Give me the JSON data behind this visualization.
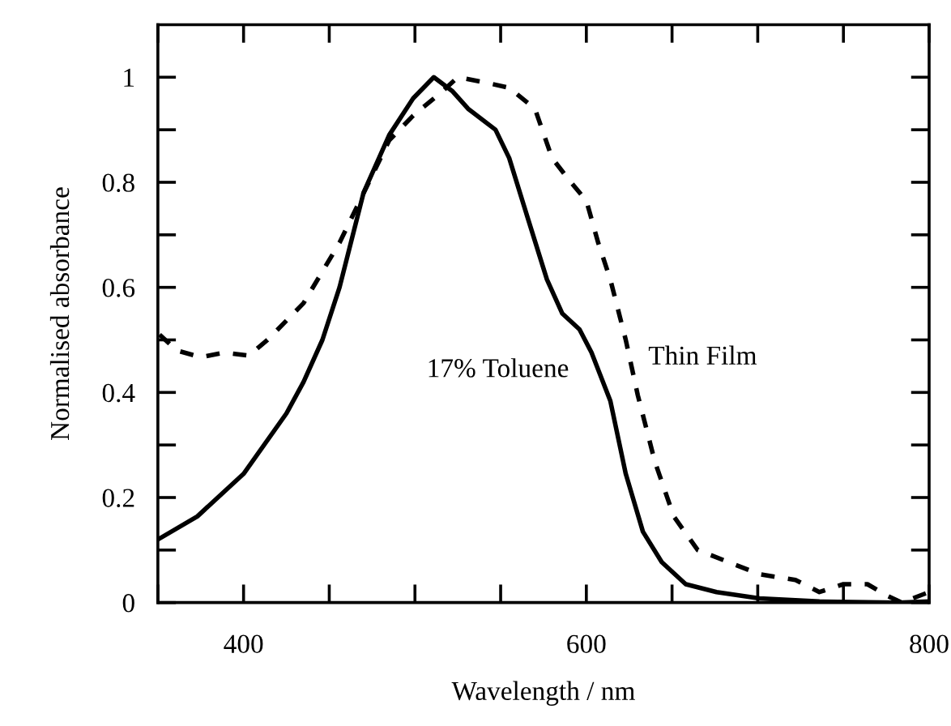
{
  "chart_data": {
    "type": "line",
    "xlabel": "Wavelength / nm",
    "ylabel": "Normalised absorbance",
    "xlim": [
      350,
      800
    ],
    "ylim": [
      0,
      1.1
    ],
    "xticks": [
      {
        "value": 350,
        "label": null
      },
      400,
      {
        "value": 450,
        "label": null
      },
      {
        "value": 500,
        "label": null
      },
      {
        "value": 550,
        "label": null
      },
      600,
      {
        "value": 650,
        "label": null
      },
      {
        "value": 700,
        "label": null
      },
      {
        "value": 750,
        "label": null
      },
      800
    ],
    "yticks": [
      0,
      {
        "value": 0.1,
        "label": null
      },
      0.2,
      {
        "value": 0.3,
        "label": null
      },
      0.4,
      {
        "value": 0.5,
        "label": null
      },
      0.6,
      {
        "value": 0.7,
        "label": null
      },
      0.8,
      {
        "value": 0.9,
        "label": null
      },
      1
    ],
    "grid": false,
    "legend": false,
    "marker": "none",
    "series": [
      {
        "name": "17% Toluene",
        "color": "#000000",
        "line_style": "solid",
        "x": [
          350,
          373,
          400,
          425,
          435,
          446,
          456,
          470,
          485,
          499,
          511,
          522,
          531,
          547,
          555,
          566,
          577,
          586,
          596,
          603,
          614,
          623,
          633,
          644,
          658,
          676,
          701,
          736,
          782,
          800
        ],
        "values": [
          0.12,
          0.164,
          0.245,
          0.36,
          0.42,
          0.5,
          0.6,
          0.78,
          0.89,
          0.96,
          1.0,
          0.973,
          0.94,
          0.9,
          0.846,
          0.73,
          0.615,
          0.55,
          0.52,
          0.476,
          0.384,
          0.245,
          0.135,
          0.077,
          0.035,
          0.02,
          0.008,
          0.002,
          0.0,
          0.002
        ]
      },
      {
        "name": "Thin Film",
        "color": "#000000",
        "line_style": "dashed",
        "x": [
          351,
          361,
          375,
          389,
          403,
          414,
          435,
          456,
          474,
          485,
          499,
          516,
          525,
          541,
          555,
          570,
          580,
          591,
          600,
          607,
          614,
          623,
          630,
          640,
          651,
          665,
          683,
          701,
          722,
          736,
          750,
          764,
          775,
          784,
          800
        ],
        "values": [
          0.51,
          0.48,
          0.467,
          0.476,
          0.47,
          0.5,
          0.57,
          0.685,
          0.806,
          0.88,
          0.927,
          0.973,
          1.0,
          0.99,
          0.98,
          0.94,
          0.846,
          0.8,
          0.765,
          0.684,
          0.615,
          0.5,
          0.395,
          0.268,
          0.164,
          0.1,
          0.077,
          0.054,
          0.043,
          0.02,
          0.035,
          0.035,
          0.014,
          0.0,
          0.02
        ]
      }
    ]
  }
}
